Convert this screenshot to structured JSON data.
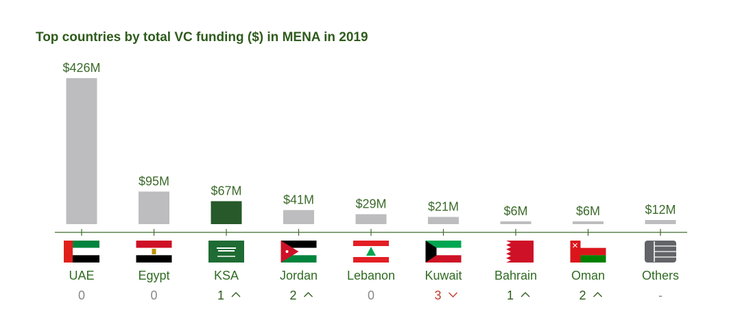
{
  "title": "Top countries by total VC funding ($) in MENA in 2019",
  "colors": {
    "bar_default": "#bdbcbf",
    "bar_highlight": "#27592a",
    "axis": "#3c6b2b",
    "label": "#3c6b2b",
    "rank_neutral": "#888888",
    "rank_up": "#2e5b1c",
    "rank_down": "#c0392b"
  },
  "chart_data": {
    "type": "bar",
    "categories": [
      "UAE",
      "Egypt",
      "KSA",
      "Jordan",
      "Lebanon",
      "Kuwait",
      "Bahrain",
      "Oman",
      "Others"
    ],
    "values": [
      426,
      95,
      67,
      41,
      29,
      21,
      6,
      6,
      12
    ],
    "value_labels": [
      "$426M",
      "$95M",
      "$67M",
      "$41M",
      "$29M",
      "$21M",
      "$6M",
      "$6M",
      "$12M"
    ],
    "highlight": [
      "KSA"
    ],
    "rank_change": [
      {
        "value": "0",
        "direction": "none"
      },
      {
        "value": "0",
        "direction": "none"
      },
      {
        "value": "1",
        "direction": "up"
      },
      {
        "value": "2",
        "direction": "up"
      },
      {
        "value": "0",
        "direction": "none"
      },
      {
        "value": "3",
        "direction": "down"
      },
      {
        "value": "1",
        "direction": "up"
      },
      {
        "value": "2",
        "direction": "up"
      },
      {
        "value": "-",
        "direction": "none"
      }
    ],
    "flags": [
      "uae-flag-icon",
      "egypt-flag-icon",
      "ksa-flag-icon",
      "jordan-flag-icon",
      "lebanon-flag-icon",
      "kuwait-flag-icon",
      "bahrain-flag-icon",
      "oman-flag-icon",
      "others-icon"
    ],
    "ylim": [
      0,
      426
    ],
    "grid": false
  }
}
